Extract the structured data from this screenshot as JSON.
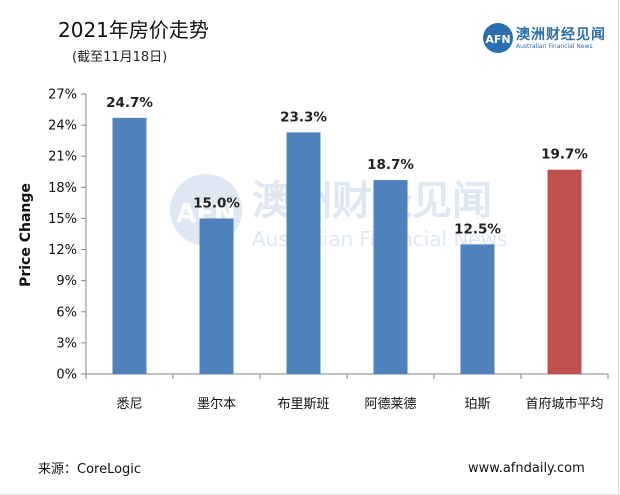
{
  "title": "2021年房价走势",
  "subtitle": "(截至11月18日)",
  "logo": {
    "text_cn": "澳洲财经见闻",
    "text_en": "Australian Financial News",
    "mark": "AFN"
  },
  "watermark": {
    "text_cn": "澳洲财经见闻",
    "text_en": "Australian Financial News",
    "mark": "AFN"
  },
  "source": "来源：CoreLogic",
  "site": "www.afndaily.com",
  "colors": {
    "bar": "#4f81bd",
    "highlight": "#c0504d",
    "accent": "#2c6fb0"
  },
  "chart_data": {
    "type": "bar",
    "title": "2021年房价走势",
    "subtitle": "(截至11月18日)",
    "ylabel": "Price Change",
    "xlabel": "",
    "categories": [
      "悉尼",
      "墨尔本",
      "布里斯班",
      "阿德莱德",
      "珀斯",
      "首府城市平均"
    ],
    "values": [
      24.7,
      15.0,
      23.3,
      18.7,
      12.5,
      19.7
    ],
    "value_labels": [
      "24.7%",
      "15.0%",
      "23.3%",
      "18.7%",
      "12.5%",
      "19.7%"
    ],
    "ylim": [
      0,
      27
    ],
    "yticks": [
      0,
      3,
      6,
      9,
      12,
      15,
      18,
      21,
      24,
      27
    ],
    "ytick_labels": [
      "0%",
      "3%",
      "6%",
      "9%",
      "12%",
      "15%",
      "18%",
      "21%",
      "24%",
      "27%"
    ],
    "highlight_index": 5,
    "grid": false
  }
}
